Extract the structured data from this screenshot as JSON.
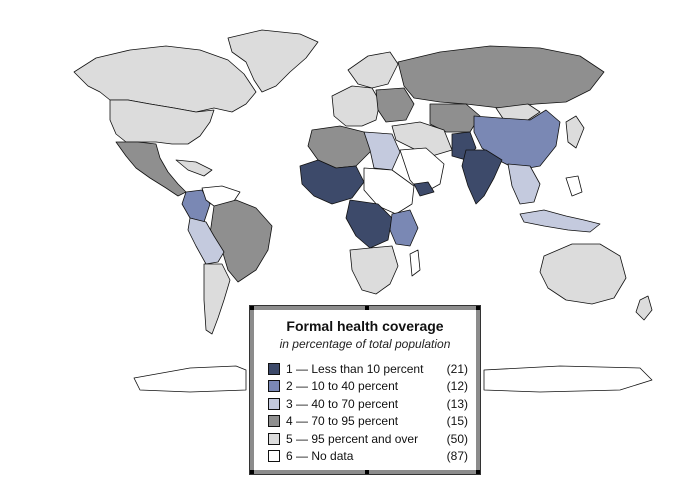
{
  "legend": {
    "title": "Formal health coverage",
    "subtitle": "in percentage of total population",
    "items": [
      {
        "label": "1 — Less than 10 percent",
        "count": "(21)",
        "color": "#3d4a6a"
      },
      {
        "label": "2 — 10 to 40 percent",
        "count": "(12)",
        "color": "#7a88b4"
      },
      {
        "label": "3 — 40 to 70 percent",
        "count": "(13)",
        "color": "#c4cade"
      },
      {
        "label": "4 — 70 to 95 percent",
        "count": "(15)",
        "color": "#8f8f8f"
      },
      {
        "label": "5 — 95 percent and over",
        "count": "(50)",
        "color": "#dcdcdc"
      },
      {
        "label": "6 — No data",
        "count": "(87)",
        "color": "#ffffff"
      }
    ]
  }
}
